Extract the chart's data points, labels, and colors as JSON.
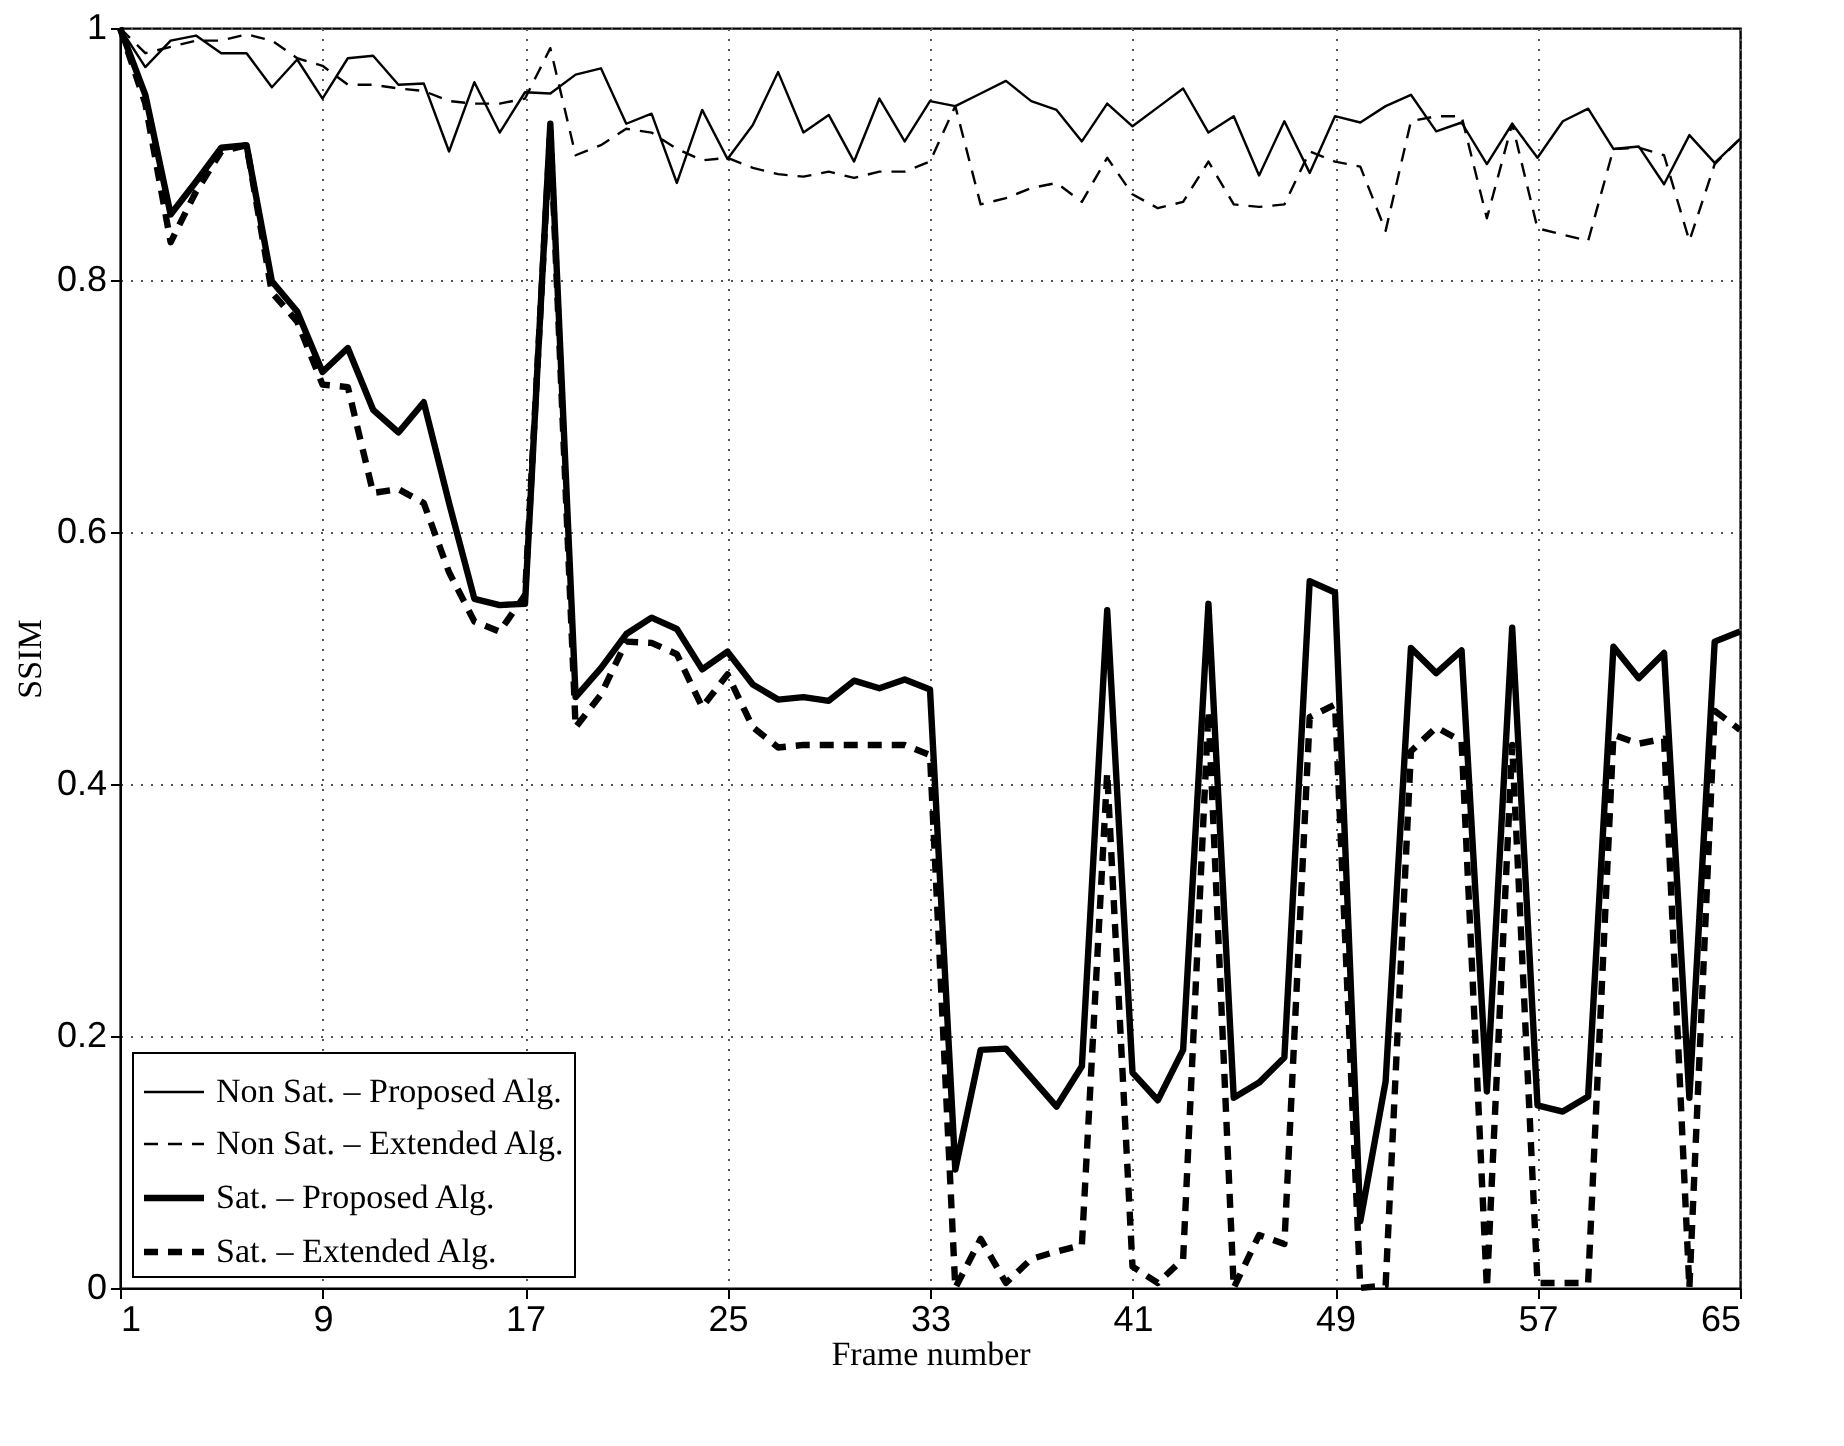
{
  "chart_data": {
    "type": "line",
    "xlabel": "Frame number",
    "ylabel": "SSIM",
    "x": [
      1,
      2,
      3,
      4,
      5,
      6,
      7,
      8,
      9,
      10,
      11,
      12,
      13,
      14,
      15,
      16,
      17,
      18,
      19,
      20,
      21,
      22,
      23,
      24,
      25,
      26,
      27,
      28,
      29,
      30,
      31,
      32,
      33,
      34,
      35,
      36,
      37,
      38,
      39,
      40,
      41,
      42,
      43,
      44,
      45,
      46,
      47,
      48,
      49,
      50,
      51,
      52,
      53,
      54,
      55,
      56,
      57,
      58,
      59,
      60,
      61,
      62,
      63,
      64,
      65
    ],
    "xlim": [
      1,
      65
    ],
    "xticks": [
      1,
      9,
      17,
      25,
      33,
      41,
      49,
      57,
      65
    ],
    "ylim": [
      0,
      1
    ],
    "yticks": [
      0,
      0.2,
      0.4,
      0.6,
      0.8,
      1
    ],
    "grid": true,
    "legend": "bottom left",
    "series": [
      {
        "name": "Non Sat. – Proposed Alg.",
        "color": "#000000",
        "line_style": "solid",
        "values": [
          1.0,
          0.969,
          0.99,
          0.994,
          0.98,
          0.98,
          0.953,
          0.975,
          0.944,
          0.976,
          0.978,
          0.955,
          0.956,
          0.902,
          0.957,
          0.917,
          0.949,
          0.948,
          0.963,
          0.968,
          0.924,
          0.932,
          0.877,
          0.935,
          0.896,
          0.923,
          0.965,
          0.917,
          0.931,
          0.894,
          0.944,
          0.91,
          0.942,
          0.938,
          0.948,
          0.958,
          0.942,
          0.935,
          0.91,
          0.94,
          0.922,
          0.937,
          0.952,
          0.917,
          0.93,
          0.883,
          0.926,
          0.885,
          0.93,
          0.925,
          0.938,
          0.947,
          0.918,
          0.925,
          0.892,
          0.924,
          0.897,
          0.926,
          0.936,
          0.904,
          0.906,
          0.876,
          0.915,
          0.893,
          0.912
        ]
      },
      {
        "name": "Non Sat. – Extended Alg.",
        "color": "#000000",
        "line_style": "dashed",
        "values": [
          1.0,
          0.98,
          0.985,
          0.99,
          0.99,
          0.995,
          0.99,
          0.976,
          0.97,
          0.955,
          0.955,
          0.952,
          0.95,
          0.942,
          0.94,
          0.94,
          0.944,
          0.984,
          0.899,
          0.907,
          0.92,
          0.917,
          0.904,
          0.895,
          0.897,
          0.889,
          0.884,
          0.882,
          0.886,
          0.881,
          0.886,
          0.886,
          0.894,
          0.938,
          0.86,
          0.865,
          0.873,
          0.877,
          0.862,
          0.897,
          0.868,
          0.857,
          0.862,
          0.894,
          0.86,
          0.858,
          0.86,
          0.902,
          0.894,
          0.89,
          0.839,
          0.926,
          0.93,
          0.93,
          0.849,
          0.924,
          0.841,
          0.836,
          0.831,
          0.904,
          0.905,
          0.899,
          0.831,
          0.892,
          0.912
        ]
      },
      {
        "name": "Sat. – Proposed Alg.",
        "color": "#000000",
        "line_style": "solid",
        "values": [
          1.0,
          0.947,
          0.852,
          0.878,
          0.905,
          0.907,
          0.799,
          0.775,
          0.727,
          0.746,
          0.697,
          0.679,
          0.703,
          0.623,
          0.547,
          0.542,
          0.543,
          0.924,
          0.469,
          0.492,
          0.519,
          0.532,
          0.523,
          0.491,
          0.505,
          0.479,
          0.467,
          0.469,
          0.466,
          0.482,
          0.476,
          0.483,
          0.475,
          0.094,
          0.189,
          0.19,
          0.167,
          0.144,
          0.176,
          0.538,
          0.171,
          0.149,
          0.189,
          0.543,
          0.151,
          0.163,
          0.183,
          0.561,
          0.552,
          0.053,
          0.164,
          0.508,
          0.488,
          0.506,
          0.156,
          0.524,
          0.145,
          0.14,
          0.152,
          0.509,
          0.484,
          0.504,
          0.151,
          0.513,
          0.521
        ]
      },
      {
        "name": "Sat. – Extended Alg.",
        "color": "#000000",
        "line_style": "dashed",
        "values": [
          1.0,
          0.94,
          0.83,
          0.87,
          0.902,
          0.907,
          0.79,
          0.767,
          0.717,
          0.715,
          0.631,
          0.634,
          0.623,
          0.568,
          0.529,
          0.521,
          0.55,
          0.92,
          0.445,
          0.471,
          0.513,
          0.512,
          0.503,
          0.461,
          0.487,
          0.445,
          0.429,
          0.431,
          0.431,
          0.431,
          0.431,
          0.431,
          0.423,
          0.0,
          0.039,
          0.004,
          0.023,
          0.029,
          0.034,
          0.409,
          0.017,
          0.004,
          0.023,
          0.458,
          0.0,
          0.042,
          0.035,
          0.453,
          0.463,
          0.0,
          0.002,
          0.426,
          0.445,
          0.434,
          0.0,
          0.431,
          0.004,
          0.004,
          0.004,
          0.439,
          0.432,
          0.436,
          0.0,
          0.458,
          0.443
        ]
      }
    ]
  }
}
